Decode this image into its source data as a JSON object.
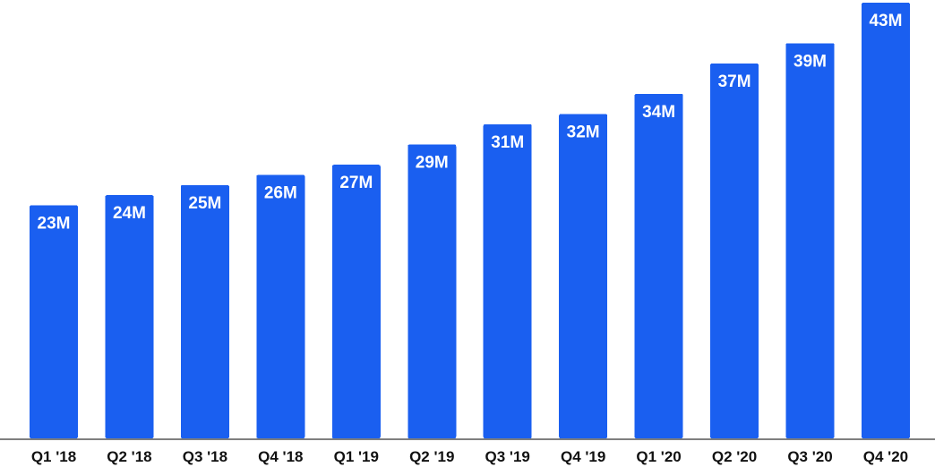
{
  "chart_data": {
    "type": "bar",
    "title": "",
    "xlabel": "",
    "ylabel": "",
    "categories": [
      "Q1 '18",
      "Q2 '18",
      "Q3 '18",
      "Q4 '18",
      "Q1 '19",
      "Q2 '19",
      "Q3 '19",
      "Q4 '19",
      "Q1 '20",
      "Q2 '20",
      "Q3 '20",
      "Q4 '20"
    ],
    "values": [
      23,
      24,
      25,
      26,
      27,
      29,
      31,
      32,
      34,
      37,
      39,
      43
    ],
    "value_labels": [
      "23M",
      "24M",
      "25M",
      "26M",
      "27M",
      "29M",
      "31M",
      "32M",
      "34M",
      "37M",
      "39M",
      "43M"
    ],
    "ylim": [
      0,
      43
    ],
    "grid": false,
    "legend": "none",
    "colors": {
      "bar": "#1a5ff0",
      "bar_label": "#ffffff",
      "tick_label": "#111111",
      "axis": "#7f7f7f"
    }
  }
}
